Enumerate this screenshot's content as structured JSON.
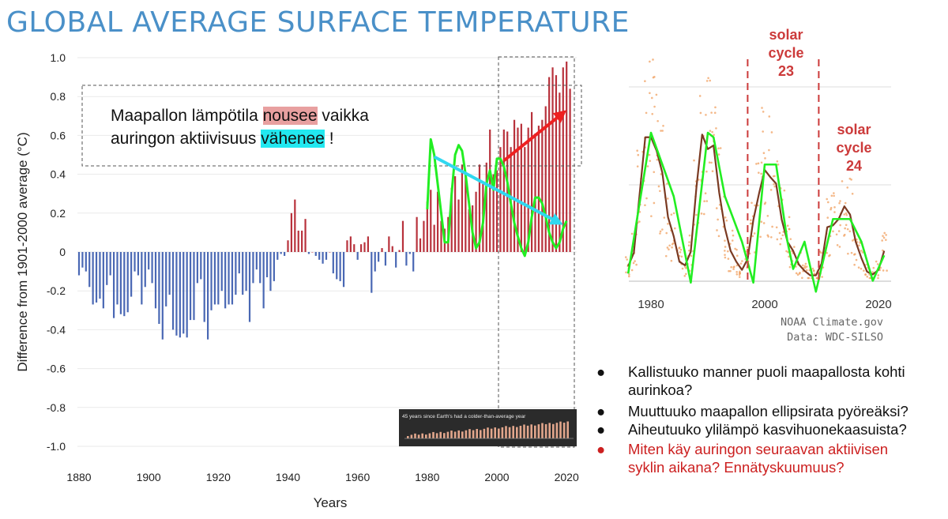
{
  "title": "GLOBAL AVERAGE SURFACE TEMPERATURE",
  "annotation": {
    "part1": "Maapallon lämpötila ",
    "word_rising": "nousee",
    "part2": " vaikka",
    "part3": "auringon aktiivisuus ",
    "word_falling": "vähenee",
    "part4": " !"
  },
  "questions": [
    {
      "text": "Kallistuuko manner puoli maapallosta kohti aurinkoa?",
      "color": "#111111"
    },
    {
      "text": "Muuttuuko maapallon ellipsirata pyöreäksi?",
      "color": "#111111"
    },
    {
      "text": "Aiheutuuko ylilämpö kasvihuonekaasuista?",
      "color": "#111111"
    },
    {
      "text": "Miten käy auringon seuraavan aktiivisen syklin aikana? Ennätyskuumuus?",
      "color": "#cc2020"
    }
  ],
  "bullet_char": "●",
  "colors": {
    "positive": "#b8323c",
    "negative": "#4a68b4",
    "overlay": "#22ee22",
    "arrow_red": "#ee2020",
    "arrow_cyan": "#30d8f0",
    "solar_cycle": "#cc3a3a",
    "sunspot": "#f0a060",
    "title": "#4a90c8"
  },
  "chart_data": [
    {
      "type": "bar",
      "xlabel": "Years",
      "ylabel": "Difference from 1901-2000 average (°C)",
      "xlim": [
        1880,
        2022
      ],
      "ylim": [
        -1.0,
        1.0
      ],
      "xticks": [
        "1880",
        "1900",
        "1920",
        "1940",
        "1960",
        "1980",
        "2000",
        "2020"
      ],
      "yticks": [
        "1.0",
        "0.8",
        "0.6",
        "0.4",
        "0.2",
        "0",
        "-0.2",
        "-0.4",
        "-0.6",
        "-0.8",
        "-1.0"
      ],
      "x": [
        1880,
        1881,
        1882,
        1883,
        1884,
        1885,
        1886,
        1887,
        1888,
        1889,
        1890,
        1891,
        1892,
        1893,
        1894,
        1895,
        1896,
        1897,
        1898,
        1899,
        1900,
        1901,
        1902,
        1903,
        1904,
        1905,
        1906,
        1907,
        1908,
        1909,
        1910,
        1911,
        1912,
        1913,
        1914,
        1915,
        1916,
        1917,
        1918,
        1919,
        1920,
        1921,
        1922,
        1923,
        1924,
        1925,
        1926,
        1927,
        1928,
        1929,
        1930,
        1931,
        1932,
        1933,
        1934,
        1935,
        1936,
        1937,
        1938,
        1939,
        1940,
        1941,
        1942,
        1943,
        1944,
        1945,
        1946,
        1947,
        1948,
        1949,
        1950,
        1951,
        1952,
        1953,
        1954,
        1955,
        1956,
        1957,
        1958,
        1959,
        1960,
        1961,
        1962,
        1963,
        1964,
        1965,
        1966,
        1967,
        1968,
        1969,
        1970,
        1971,
        1972,
        1973,
        1974,
        1975,
        1976,
        1977,
        1978,
        1979,
        1980,
        1981,
        1982,
        1983,
        1984,
        1985,
        1986,
        1987,
        1988,
        1989,
        1990,
        1991,
        1992,
        1993,
        1994,
        1995,
        1996,
        1997,
        1998,
        1999,
        2000,
        2001,
        2002,
        2003,
        2004,
        2005,
        2006,
        2007,
        2008,
        2009,
        2010,
        2011,
        2012,
        2013,
        2014,
        2015,
        2016,
        2017,
        2018,
        2019,
        2020,
        2021
      ],
      "values": [
        -0.12,
        -0.08,
        -0.1,
        -0.18,
        -0.27,
        -0.26,
        -0.24,
        -0.29,
        -0.17,
        -0.12,
        -0.34,
        -0.27,
        -0.32,
        -0.33,
        -0.31,
        -0.23,
        -0.1,
        -0.12,
        -0.27,
        -0.18,
        -0.09,
        -0.16,
        -0.29,
        -0.37,
        -0.45,
        -0.28,
        -0.22,
        -0.4,
        -0.43,
        -0.44,
        -0.42,
        -0.44,
        -0.35,
        -0.35,
        -0.16,
        -0.14,
        -0.36,
        -0.45,
        -0.3,
        -0.27,
        -0.27,
        -0.2,
        -0.29,
        -0.27,
        -0.27,
        -0.22,
        -0.11,
        -0.22,
        -0.2,
        -0.36,
        -0.16,
        -0.09,
        -0.16,
        -0.29,
        -0.13,
        -0.2,
        -0.15,
        -0.04,
        -0.01,
        -0.02,
        0.06,
        0.2,
        0.27,
        0.11,
        0.11,
        0.17,
        -0.01,
        0.0,
        -0.02,
        -0.04,
        -0.06,
        -0.04,
        0.0,
        -0.11,
        -0.14,
        -0.15,
        -0.18,
        0.06,
        0.08,
        0.04,
        -0.04,
        0.04,
        0.05,
        0.08,
        -0.21,
        -0.1,
        -0.05,
        0.02,
        -0.07,
        0.08,
        0.03,
        -0.08,
        0.01,
        0.16,
        -0.07,
        -0.01,
        -0.1,
        0.18,
        0.07,
        0.16,
        0.26,
        0.32,
        0.14,
        0.31,
        0.16,
        0.12,
        0.18,
        0.33,
        0.39,
        0.27,
        0.45,
        0.41,
        0.22,
        0.24,
        0.31,
        0.45,
        0.35,
        0.46,
        0.63,
        0.4,
        0.42,
        0.54,
        0.63,
        0.62,
        0.54,
        0.68,
        0.64,
        0.66,
        0.54,
        0.64,
        0.72,
        0.61,
        0.65,
        0.68,
        0.75,
        0.9,
        0.95,
        0.91,
        0.82,
        0.95,
        0.98,
        0.84
      ],
      "overlay_line": {
        "x": [
          1980,
          1981,
          1982,
          1983,
          1984,
          1985,
          1986,
          1987,
          1988,
          1989,
          1990,
          1991,
          1992,
          1993,
          1994,
          1995,
          1996,
          1997,
          1998,
          1999,
          2000,
          2001,
          2002,
          2003,
          2004,
          2005,
          2006,
          2007,
          2008,
          2009,
          2010,
          2011,
          2012,
          2013,
          2014,
          2015,
          2016,
          2017,
          2018,
          2019,
          2020
        ],
        "values": [
          0.22,
          0.58,
          0.5,
          0.35,
          0.2,
          0.05,
          0.05,
          0.3,
          0.5,
          0.55,
          0.52,
          0.4,
          0.25,
          0.1,
          0.02,
          0.05,
          0.15,
          0.35,
          0.42,
          0.32,
          0.48,
          0.48,
          0.44,
          0.36,
          0.25,
          0.15,
          0.08,
          0.02,
          -0.02,
          0.05,
          0.18,
          0.28,
          0.28,
          0.25,
          0.18,
          0.1,
          0.05,
          0.02,
          0.05,
          0.12,
          0.16
        ]
      },
      "arrows": [
        {
          "from": [
            1982,
            0.49
          ],
          "to": [
            2019,
            0.14
          ],
          "color": "cyan"
        },
        {
          "from": [
            2002,
            0.47
          ],
          "to": [
            2020,
            0.73
          ],
          "color": "red"
        }
      ],
      "inset_caption": "45 years since Earth's had a colder-than-average year"
    },
    {
      "type": "line",
      "xlim": [
        1976,
        2022
      ],
      "xticks": [
        "1980",
        "2000",
        "2020"
      ],
      "markers": [
        {
          "year": 1997,
          "label": [
            "solar",
            "cycle",
            "23"
          ]
        },
        {
          "year": 2009.5,
          "label": [
            "solar",
            "cycle",
            "24"
          ]
        }
      ],
      "credits": [
        "NOAA Climate.gov",
        "Data: WDC-SILSO"
      ],
      "series": [
        {
          "x": [
            1976,
            1977,
            1978,
            1979,
            1980,
            1981,
            1982,
            1983,
            1984,
            1985,
            1986,
            1987,
            1988,
            1989,
            1990,
            1991,
            1992,
            1993,
            1994,
            1995,
            1996,
            1997,
            1998,
            1999,
            2000,
            2001,
            2002,
            2003,
            2004,
            2005,
            2006,
            2007,
            2008,
            2009,
            2010,
            2011,
            2012,
            2013,
            2014,
            2015,
            2016,
            2017,
            2018,
            2019,
            2020,
            2021
          ],
          "values": [
            13,
            28,
            92,
            155,
            155,
            140,
            116,
            67,
            46,
            18,
            14,
            29,
            100,
            158,
            142,
            146,
            94,
            55,
            30,
            18,
            9,
            21,
            64,
            93,
            119,
            111,
            104,
            64,
            40,
            30,
            15,
            8,
            3,
            3,
            16,
            56,
            58,
            65,
            79,
            70,
            40,
            22,
            7,
            4,
            9,
            30
          ]
        },
        {
          "x": [
            1976,
            1980,
            1984,
            1987,
            1990,
            1991,
            1993,
            1996,
            1998,
            2000,
            2002,
            2004,
            2005,
            2007,
            2009,
            2012,
            2013,
            2015,
            2017,
            2019,
            2021
          ],
          "values": [
            5,
            160,
            90,
            -5,
            160,
            155,
            90,
            40,
            -5,
            125,
            125,
            40,
            10,
            40,
            -15,
            65,
            65,
            65,
            40,
            -3,
            25
          ]
        }
      ]
    }
  ]
}
